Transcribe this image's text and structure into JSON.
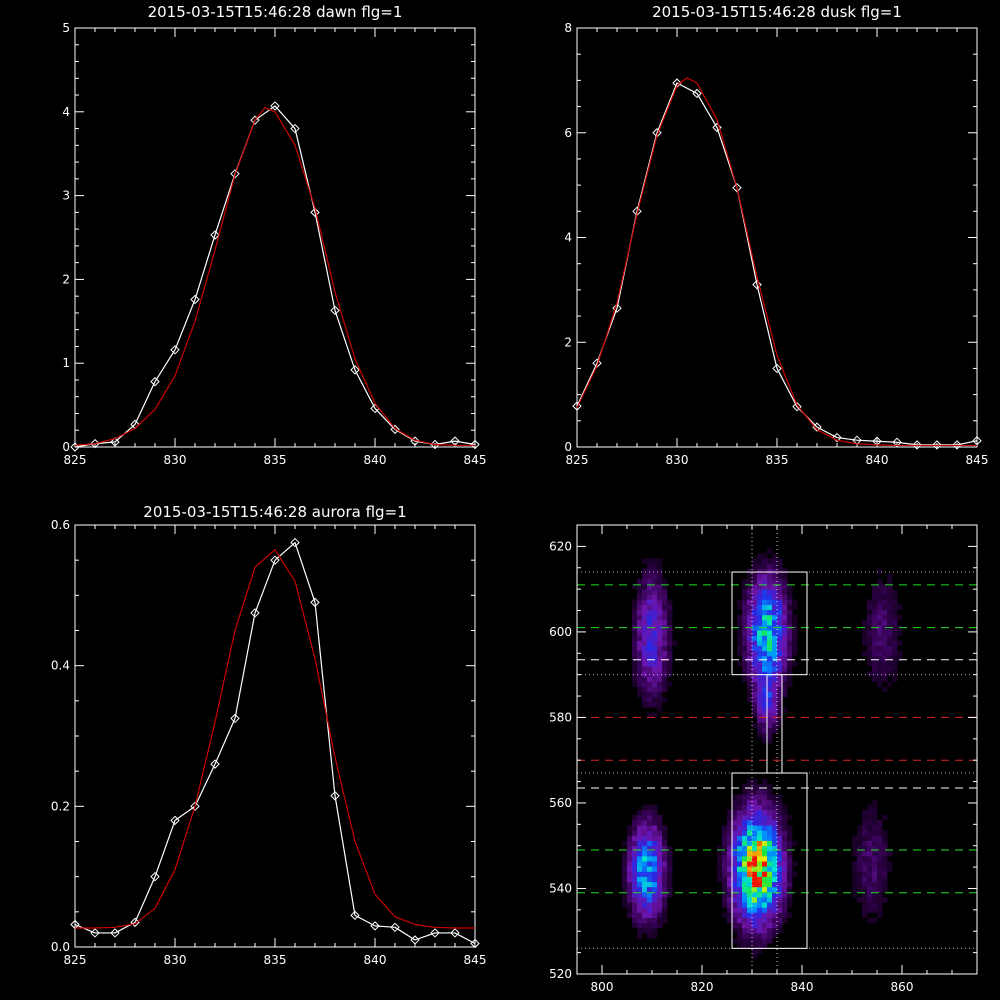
{
  "colors": {
    "background": "#000000",
    "axes": "#ffffff",
    "data_line": "#ffffff",
    "fit_line": "#cc0000",
    "green_dash": "#22dd22",
    "red_dash": "#dd2222",
    "white_dash": "#ffffff",
    "dotted": "#ffffff"
  },
  "chart_data": [
    {
      "type": "line",
      "title": "2015-03-15T15:46:28 dawn flg=1",
      "xlim": [
        825,
        845
      ],
      "ylim": [
        0,
        5
      ],
      "xticks": [
        825,
        830,
        835,
        840,
        845
      ],
      "yticks": [
        0,
        1,
        2,
        3,
        4,
        5
      ],
      "series": [
        {
          "role": "data",
          "markers": "diamond",
          "x": [
            825,
            826,
            827,
            828,
            829,
            830,
            831,
            832,
            833,
            834,
            835,
            836,
            837,
            838,
            839,
            840,
            841,
            842,
            843,
            844,
            845
          ],
          "y": [
            0.0,
            0.04,
            0.06,
            0.27,
            0.78,
            1.16,
            1.76,
            2.53,
            3.26,
            3.9,
            4.07,
            3.8,
            2.8,
            1.63,
            0.92,
            0.46,
            0.21,
            0.07,
            0.03,
            0.07,
            0.03
          ]
        },
        {
          "role": "fit",
          "x": [
            825,
            826,
            827,
            828,
            829,
            830,
            831,
            832,
            833,
            834,
            834.5,
            835,
            836,
            837,
            838,
            839,
            840,
            841,
            842,
            843,
            844,
            845
          ],
          "y": [
            0.02,
            0.04,
            0.1,
            0.22,
            0.45,
            0.85,
            1.5,
            2.35,
            3.25,
            3.9,
            4.05,
            4.0,
            3.6,
            2.85,
            1.85,
            1.05,
            0.52,
            0.22,
            0.08,
            0.03,
            0.02,
            0.02
          ]
        }
      ]
    },
    {
      "type": "line",
      "title": "2015-03-15T15:46:28 dusk flg=1",
      "xlim": [
        825,
        845
      ],
      "ylim": [
        0,
        8
      ],
      "xticks": [
        825,
        830,
        835,
        840,
        845
      ],
      "yticks": [
        0,
        2,
        4,
        6,
        8
      ],
      "series": [
        {
          "role": "data",
          "markers": "diamond",
          "x": [
            825,
            826,
            827,
            828,
            829,
            830,
            831,
            832,
            833,
            834,
            835,
            836,
            837,
            838,
            839,
            840,
            841,
            842,
            843,
            844,
            845
          ],
          "y": [
            0.78,
            1.6,
            2.65,
            4.5,
            6.0,
            6.95,
            6.75,
            6.1,
            4.95,
            3.1,
            1.5,
            0.77,
            0.38,
            0.18,
            0.13,
            0.11,
            0.09,
            0.04,
            0.04,
            0.04,
            0.12
          ]
        },
        {
          "role": "fit",
          "x": [
            825,
            826,
            827,
            828,
            829,
            830,
            830.5,
            831,
            832,
            833,
            834,
            835,
            836,
            837,
            838,
            839,
            840,
            841,
            842,
            843,
            844,
            845
          ],
          "y": [
            0.75,
            1.55,
            2.75,
            4.45,
            5.95,
            6.9,
            7.05,
            6.95,
            6.25,
            4.95,
            3.25,
            1.75,
            0.8,
            0.33,
            0.13,
            0.06,
            0.04,
            0.03,
            0.03,
            0.03,
            0.03,
            0.03
          ]
        }
      ]
    },
    {
      "type": "line",
      "title": "2015-03-15T15:46:28 aurora flg=1",
      "xlim": [
        825,
        845
      ],
      "ylim": [
        0,
        0.6
      ],
      "xticks": [
        825,
        830,
        835,
        840,
        845
      ],
      "yticks": [
        0.0,
        0.2,
        0.4,
        0.6
      ],
      "series": [
        {
          "role": "data",
          "markers": "diamond",
          "x": [
            825,
            826,
            827,
            828,
            829,
            830,
            831,
            832,
            833,
            834,
            835,
            836,
            837,
            838,
            839,
            840,
            841,
            842,
            843,
            844,
            845
          ],
          "y": [
            0.032,
            0.02,
            0.02,
            0.035,
            0.1,
            0.18,
            0.2,
            0.26,
            0.325,
            0.475,
            0.55,
            0.575,
            0.49,
            0.215,
            0.045,
            0.03,
            0.028,
            0.01,
            0.02,
            0.02,
            0.005
          ]
        },
        {
          "role": "fit",
          "x": [
            825,
            826,
            827,
            828,
            829,
            830,
            831,
            832,
            833,
            834,
            835,
            836,
            837,
            838,
            839,
            840,
            841,
            842,
            843,
            844,
            845
          ],
          "y": [
            0.027,
            0.027,
            0.028,
            0.033,
            0.055,
            0.11,
            0.2,
            0.32,
            0.45,
            0.54,
            0.565,
            0.52,
            0.41,
            0.27,
            0.15,
            0.075,
            0.043,
            0.032,
            0.028,
            0.027,
            0.027
          ]
        }
      ]
    },
    {
      "type": "heatmap",
      "xlim": [
        795,
        875
      ],
      "ylim": [
        520,
        625
      ],
      "xticks": [
        800,
        820,
        840,
        860
      ],
      "yticks": [
        520,
        540,
        560,
        580,
        600,
        620
      ],
      "emission_blobs": [
        {
          "x": 809,
          "y": 544,
          "sx": 2.2,
          "sy": 7,
          "amp": 0.55
        },
        {
          "x": 810,
          "y": 599,
          "sx": 2.2,
          "sy": 9,
          "amp": 0.3
        },
        {
          "x": 831,
          "y": 545,
          "sx": 3.0,
          "sy": 8,
          "amp": 1.0
        },
        {
          "x": 833,
          "y": 600,
          "sx": 2.5,
          "sy": 8,
          "amp": 0.6
        },
        {
          "x": 833,
          "y": 584,
          "sx": 1.5,
          "sy": 5,
          "amp": 0.25
        },
        {
          "x": 854,
          "y": 546,
          "sx": 2.5,
          "sy": 9,
          "amp": 0.12
        },
        {
          "x": 856,
          "y": 600,
          "sx": 2.5,
          "sy": 9,
          "amp": 0.12
        }
      ],
      "boxes": [
        {
          "x0": 826,
          "x1": 841,
          "y0": 526,
          "y1": 567
        },
        {
          "x0": 826,
          "x1": 841,
          "y0": 590,
          "y1": 614
        },
        {
          "x0": 833,
          "x1": 836,
          "y0": 567,
          "y1": 590
        }
      ],
      "hlines_green": [
        539,
        549,
        601,
        611
      ],
      "hlines_red": [
        570,
        580
      ],
      "hlines_white_dash": [
        563.5,
        593.5
      ],
      "hlines_dotted": [
        526,
        567,
        590,
        614
      ],
      "vlines_dotted": [
        830,
        835
      ]
    }
  ]
}
